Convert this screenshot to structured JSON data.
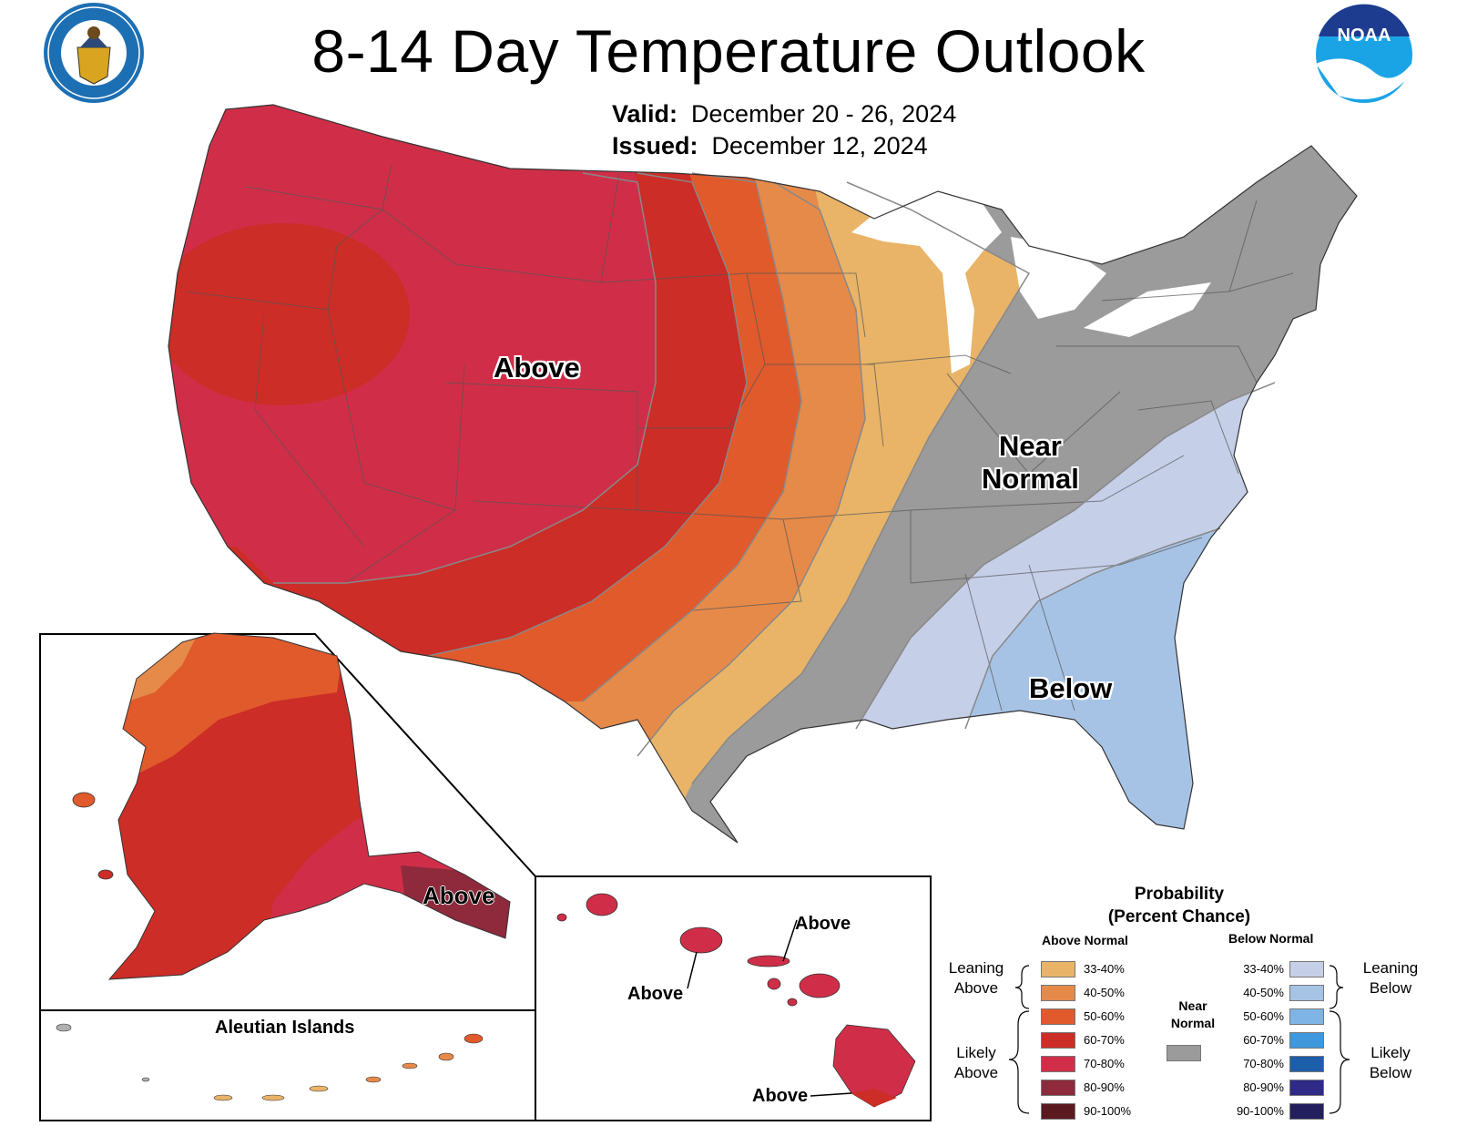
{
  "title": "8-14 Day Temperature Outlook",
  "valid_label": "Valid:",
  "valid_value": "December 20 - 26, 2024",
  "issued_label": "Issued:",
  "issued_value": "December 12, 2024",
  "logos": {
    "left": "department-of-commerce-seal",
    "right": "noaa-logo"
  },
  "map_labels": {
    "conus_above": "Above",
    "conus_near_normal": "Near Normal",
    "conus_near_line1": "Near",
    "conus_near_line2": "Normal",
    "conus_below": "Below",
    "alaska_above": "Above",
    "aleutian_title": "Aleutian Islands",
    "hawaii_above_1": "Above",
    "hawaii_above_2": "Above",
    "hawaii_above_3": "Above"
  },
  "legend": {
    "title_line1": "Probability",
    "title_line2": "(Percent Chance)",
    "above_head": "Above Normal",
    "below_head": "Below Normal",
    "near_line1": "Near",
    "near_line2": "Normal",
    "near_color": "#9b9b9b",
    "leaning_above_1": "Leaning",
    "leaning_above_2": "Above",
    "likely_above_1": "Likely",
    "likely_above_2": "Above",
    "leaning_below_1": "Leaning",
    "leaning_below_2": "Below",
    "likely_below_1": "Likely",
    "likely_below_2": "Below",
    "above": [
      {
        "range": "33-40%",
        "color": "#e9b468"
      },
      {
        "range": "40-50%",
        "color": "#e68a4a"
      },
      {
        "range": "50-60%",
        "color": "#e05a2c"
      },
      {
        "range": "60-70%",
        "color": "#cc2d27"
      },
      {
        "range": "70-80%",
        "color": "#d02e48"
      },
      {
        "range": "80-90%",
        "color": "#8e2a3c"
      },
      {
        "range": "90-100%",
        "color": "#5a1a20"
      }
    ],
    "below": [
      {
        "range": "33-40%",
        "color": "#c5cfe8"
      },
      {
        "range": "40-50%",
        "color": "#a6c3e6"
      },
      {
        "range": "50-60%",
        "color": "#7eb5e6"
      },
      {
        "range": "60-70%",
        "color": "#3f97dc"
      },
      {
        "range": "70-80%",
        "color": "#1c5fa8"
      },
      {
        "range": "80-90%",
        "color": "#2e2a86"
      },
      {
        "range": "90-100%",
        "color": "#231f5e"
      }
    ]
  }
}
